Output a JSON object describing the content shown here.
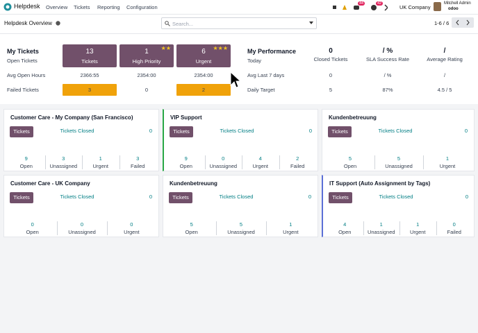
{
  "navbar": {
    "app": "Helpdesk",
    "menu": [
      "Overview",
      "Tickets",
      "Reporting",
      "Configuration"
    ],
    "chat_count": 44,
    "activity_count": 42,
    "company": "UK Company",
    "user": "Mitchell Admin",
    "db": "odoo"
  },
  "control_panel": {
    "title": "Helpdesk Overview",
    "search_placeholder": "Search...",
    "pager": "1-6 / 6"
  },
  "my_tickets": {
    "title": "My Tickets",
    "subtitle": "Open Tickets",
    "columns": [
      {
        "count": 13,
        "label": "Tickets"
      },
      {
        "count": 1,
        "label": "High Priority",
        "stars": "★★"
      },
      {
        "count": 6,
        "label": "Urgent",
        "stars": "★★★"
      }
    ],
    "rows": [
      {
        "label": "Avg Open Hours",
        "values": [
          "2366:55",
          "2354:00",
          "2354:00"
        ]
      },
      {
        "label": "Failed Tickets",
        "values": [
          3,
          0,
          2
        ]
      }
    ]
  },
  "my_performance": {
    "title": "My Performance",
    "subtitle": "Today",
    "columns": [
      {
        "value": 0,
        "label": "Closed Tickets"
      },
      {
        "value": "/ %",
        "label": "SLA Success Rate"
      },
      {
        "value": "/",
        "label": "Average Rating"
      }
    ],
    "rows": [
      {
        "label": "Avg Last 7 days",
        "values": [
          0,
          "/ %",
          "/"
        ]
      },
      {
        "label": "Daily Target",
        "values": [
          5,
          "87%",
          "4.5 / 5"
        ]
      }
    ]
  },
  "teams": [
    {
      "name": "Customer Care - My Company (San Francisco)",
      "button": "Tickets",
      "closed_label": "Tickets Closed",
      "closed": 0,
      "stats": [
        {
          "value": 9,
          "label": "Open"
        },
        {
          "value": 3,
          "label": "Unassigned"
        },
        {
          "value": 1,
          "label": "Urgent"
        },
        {
          "value": 3,
          "label": "Failed"
        }
      ]
    },
    {
      "name": "VIP Support",
      "color": "#28a745",
      "button": "Tickets",
      "closed_label": "Tickets Closed",
      "closed": 0,
      "stats": [
        {
          "value": 9,
          "label": "Open"
        },
        {
          "value": 0,
          "label": "Unassigned"
        },
        {
          "value": 4,
          "label": "Urgent"
        },
        {
          "value": 2,
          "label": "Failed"
        }
      ]
    },
    {
      "name": "Kundenbetreuung",
      "button": "Tickets",
      "closed_label": "Tickets Closed",
      "closed": 0,
      "stats": [
        {
          "value": 5,
          "label": "Open"
        },
        {
          "value": 5,
          "label": "Unassigned"
        },
        {
          "value": 1,
          "label": "Urgent"
        }
      ]
    },
    {
      "name": "Customer Care - UK Company",
      "button": "Tickets",
      "closed_label": "Tickets Closed",
      "closed": 0,
      "stats": [
        {
          "value": 0,
          "label": "Open"
        },
        {
          "value": 0,
          "label": "Unassigned"
        },
        {
          "value": 0,
          "label": "Urgent"
        }
      ]
    },
    {
      "name": "Kundenbetreuung",
      "button": "Tickets",
      "closed_label": "Tickets Closed",
      "closed": 0,
      "stats": [
        {
          "value": 5,
          "label": "Open"
        },
        {
          "value": 5,
          "label": "Unassigned"
        },
        {
          "value": 1,
          "label": "Urgent"
        }
      ]
    },
    {
      "name": "IT Support (Auto Assignment by Tags)",
      "color": "#5b6fd6",
      "button": "Tickets",
      "closed_label": "Tickets Closed",
      "closed": 0,
      "stats": [
        {
          "value": 4,
          "label": "Open"
        },
        {
          "value": 1,
          "label": "Unassigned"
        },
        {
          "value": 1,
          "label": "Urgent"
        },
        {
          "value": 0,
          "label": "Failed"
        }
      ]
    }
  ]
}
